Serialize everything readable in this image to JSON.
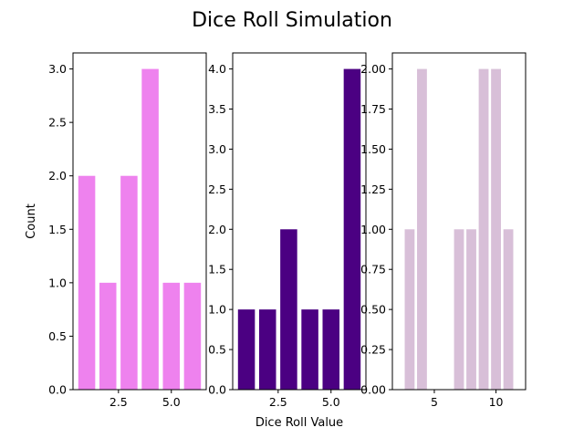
{
  "figure": {
    "title": "Dice Roll Simulation"
  },
  "chart_data": [
    {
      "type": "bar",
      "x": [
        1,
        2,
        3,
        4,
        5,
        6
      ],
      "values": [
        2,
        1,
        2,
        3,
        1,
        1
      ],
      "color": "#ee82ee",
      "xlim": [
        0.35,
        6.65
      ],
      "ylim": [
        0,
        3.15
      ],
      "xticks": [
        2.5,
        5.0
      ],
      "xtick_labels": [
        "2.5",
        "5.0"
      ],
      "yticks": [
        0,
        0.5,
        1.0,
        1.5,
        2.0,
        2.5,
        3.0
      ],
      "ytick_labels": [
        "0.0",
        "0.5",
        "1.0",
        "1.5",
        "2.0",
        "2.5",
        "3.0"
      ],
      "xlabel": "",
      "ylabel": "Count"
    },
    {
      "type": "bar",
      "x": [
        1,
        2,
        3,
        4,
        5,
        6
      ],
      "values": [
        1,
        1,
        2,
        1,
        1,
        4
      ],
      "color": "#4b0082",
      "xlim": [
        0.35,
        6.65
      ],
      "ylim": [
        0,
        4.2
      ],
      "xticks": [
        2.5,
        5.0
      ],
      "xtick_labels": [
        "2.5",
        "5.0"
      ],
      "yticks": [
        0,
        0.5,
        1.0,
        1.5,
        2.0,
        2.5,
        3.0,
        3.5,
        4.0
      ],
      "ytick_labels": [
        "0.0",
        "0.5",
        "1.0",
        "1.5",
        "2.0",
        "2.5",
        "3.0",
        "3.5",
        "4.0"
      ],
      "xlabel": "Dice Roll Value",
      "ylabel": ""
    },
    {
      "type": "bar",
      "x": [
        3,
        4,
        7,
        8,
        9,
        10,
        11
      ],
      "values": [
        1,
        2,
        1,
        1,
        2,
        2,
        1
      ],
      "color": "#d8bfd8",
      "xlim": [
        1.6,
        12.4
      ],
      "ylim": [
        0,
        2.1
      ],
      "xticks": [
        5,
        10
      ],
      "xtick_labels": [
        "5",
        "10"
      ],
      "yticks": [
        0,
        0.25,
        0.5,
        0.75,
        1.0,
        1.25,
        1.5,
        1.75,
        2.0
      ],
      "ytick_labels": [
        "0.00",
        "0.25",
        "0.50",
        "0.75",
        "1.00",
        "1.25",
        "1.50",
        "1.75",
        "2.00"
      ],
      "xlabel": "",
      "ylabel": ""
    }
  ]
}
